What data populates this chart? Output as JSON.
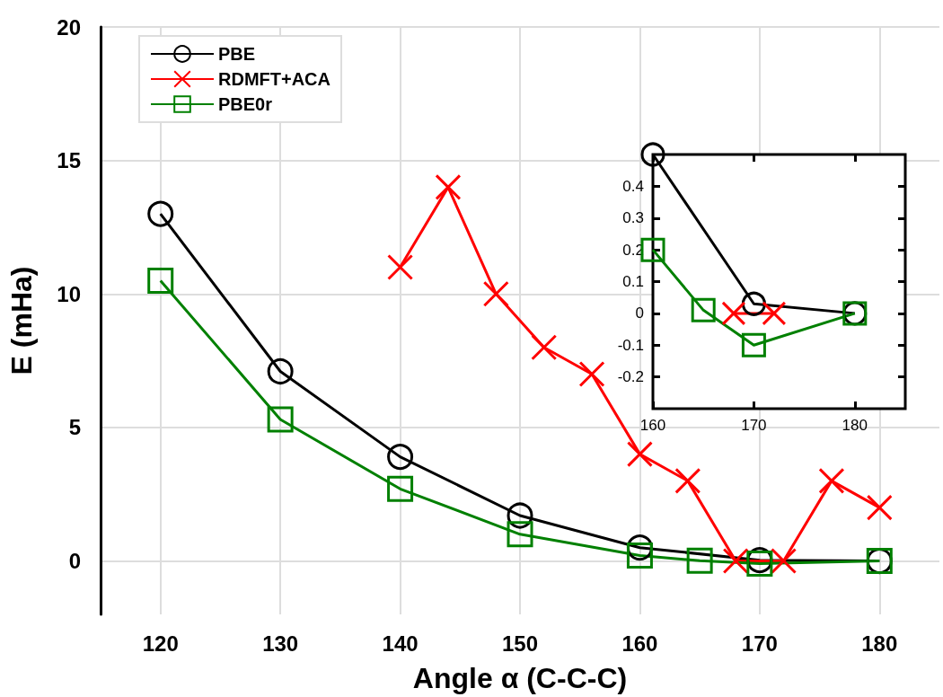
{
  "chart_data": [
    {
      "type": "line",
      "xlabel": "Angle α (C-C-C)",
      "ylabel": "E (mHa)",
      "xlim": [
        115,
        185
      ],
      "xticks": [
        120,
        130,
        140,
        150,
        160,
        170,
        180
      ],
      "ylim": [
        -2,
        20
      ],
      "yticks": [
        0,
        5,
        10,
        15,
        20
      ],
      "grid": true,
      "legend": "top left",
      "series": [
        {
          "name": "PBE",
          "color": "#000000",
          "marker": "circle",
          "x": [
            120,
            130,
            140,
            150,
            160,
            170,
            180
          ],
          "values": [
            13,
            7.1,
            3.9,
            1.7,
            0.5,
            0.03,
            0
          ]
        },
        {
          "name": "RDMFT+ACA",
          "color": "#ff0000",
          "marker": "cross",
          "x": [
            140,
            144,
            148,
            152,
            156,
            160,
            164,
            168,
            172,
            176,
            180
          ],
          "values": [
            11,
            14,
            10,
            8,
            7,
            4,
            3,
            0,
            0,
            3,
            2
          ]
        },
        {
          "name": "PBE0r",
          "color": "#008000",
          "marker": "square",
          "x": [
            120,
            130,
            140,
            150,
            160,
            165,
            170,
            180
          ],
          "values": [
            10.5,
            5.3,
            2.7,
            1.0,
            0.2,
            0.01,
            -0.1,
            0
          ]
        }
      ]
    },
    {
      "type": "line",
      "xlim": [
        160,
        185
      ],
      "xticks": [
        160,
        170,
        180
      ],
      "ylim": [
        -0.3,
        0.5
      ],
      "yticks": [
        -0.2,
        -0.1,
        0,
        0.1,
        0.2,
        0.3,
        0.4
      ],
      "grid": false,
      "legend": false,
      "series": [
        {
          "color": "#000000",
          "marker": "circle",
          "x": [
            160,
            170,
            180
          ],
          "values": [
            0.5,
            0.03,
            0
          ]
        },
        {
          "color": "#ff0000",
          "marker": "cross",
          "x": [
            168,
            172
          ],
          "values": [
            0,
            0
          ]
        },
        {
          "color": "#008000",
          "marker": "square",
          "x": [
            160,
            165,
            170,
            180
          ],
          "values": [
            0.2,
            0.01,
            -0.1,
            0
          ]
        }
      ]
    }
  ]
}
